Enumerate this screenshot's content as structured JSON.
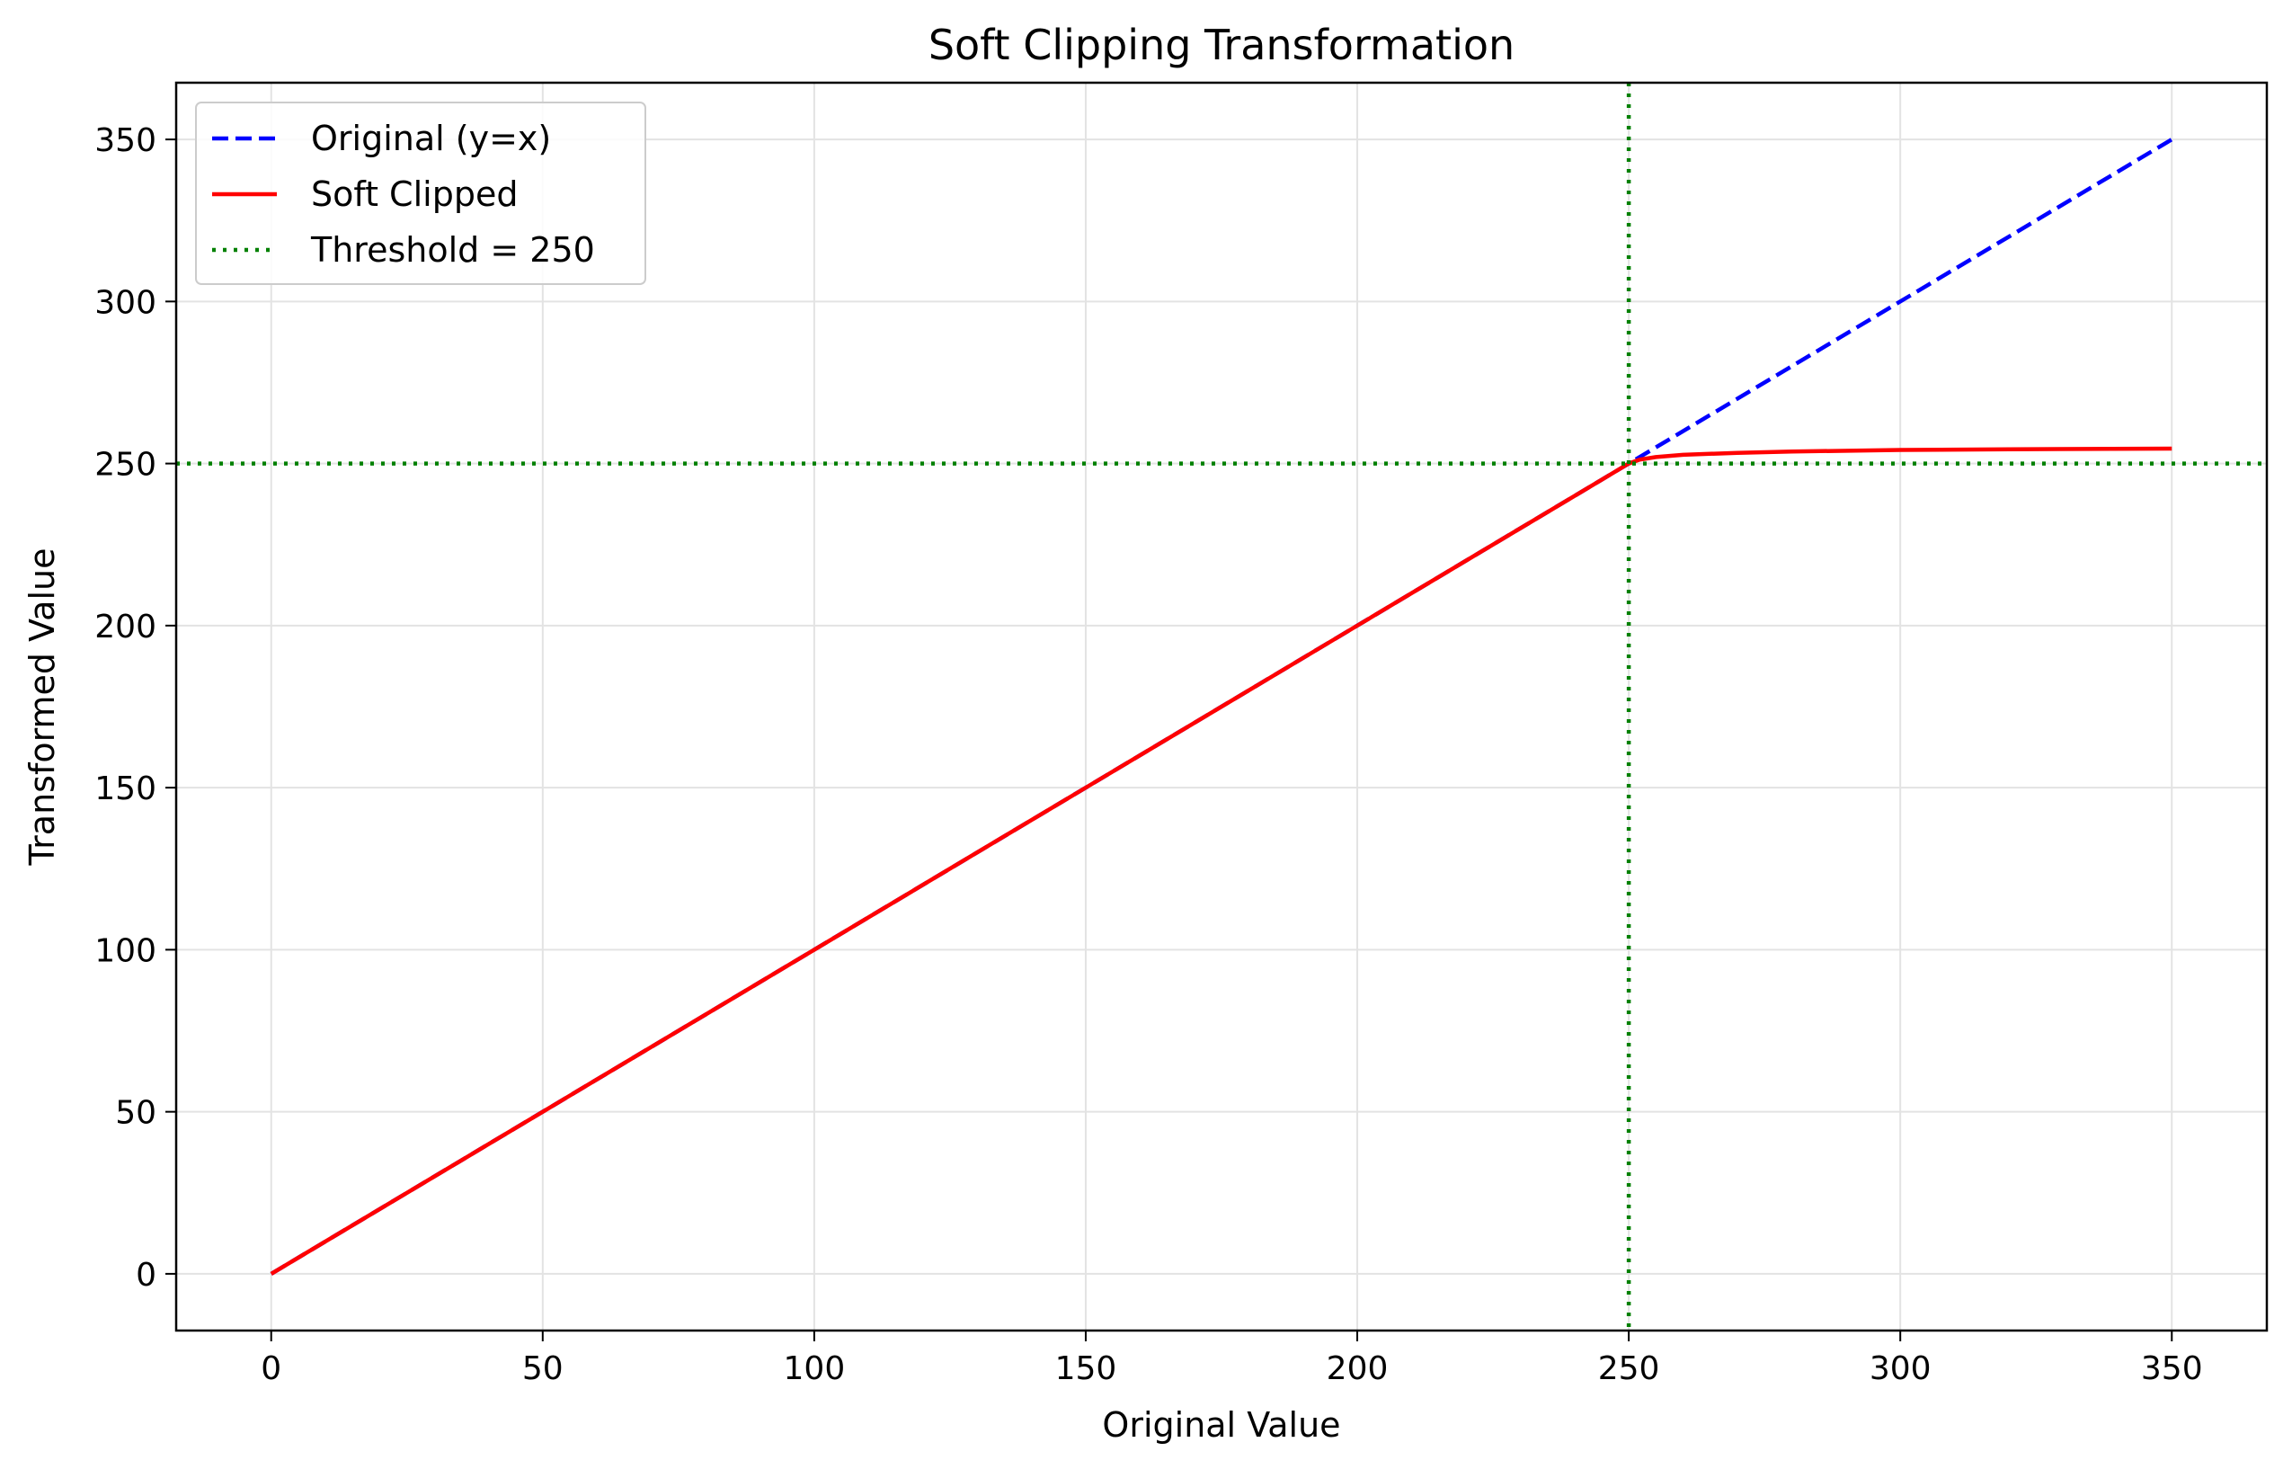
{
  "chart_data": {
    "type": "line",
    "title": "Soft Clipping Transformation",
    "xlabel": "Original Value",
    "ylabel": "Transformed Value",
    "xlim": [
      -17.5,
      367.5
    ],
    "ylim": [
      -17.5,
      367.5
    ],
    "xticks": [
      0,
      50,
      100,
      150,
      200,
      250,
      300,
      350
    ],
    "yticks": [
      0,
      50,
      100,
      150,
      200,
      250,
      300,
      350
    ],
    "grid": true,
    "legend_position": "top-left",
    "series": [
      {
        "name": "Original (y=x)",
        "style": "dashed",
        "color": "#0000ff",
        "x": [
          0,
          350
        ],
        "y": [
          0,
          350
        ]
      },
      {
        "name": "Soft Clipped",
        "style": "solid",
        "color": "#ff0000",
        "x": [
          0,
          50,
          100,
          150,
          200,
          240,
          250,
          252,
          255,
          260,
          270,
          280,
          300,
          320,
          350
        ],
        "y": [
          0,
          50,
          100,
          150,
          200,
          240,
          250,
          251.2,
          252.0,
          252.7,
          253.3,
          253.7,
          254.2,
          254.4,
          254.6
        ]
      },
      {
        "name": "Threshold = 250",
        "style": "dotted",
        "color": "#008000",
        "x_line": 250,
        "y_line": 250
      }
    ]
  }
}
